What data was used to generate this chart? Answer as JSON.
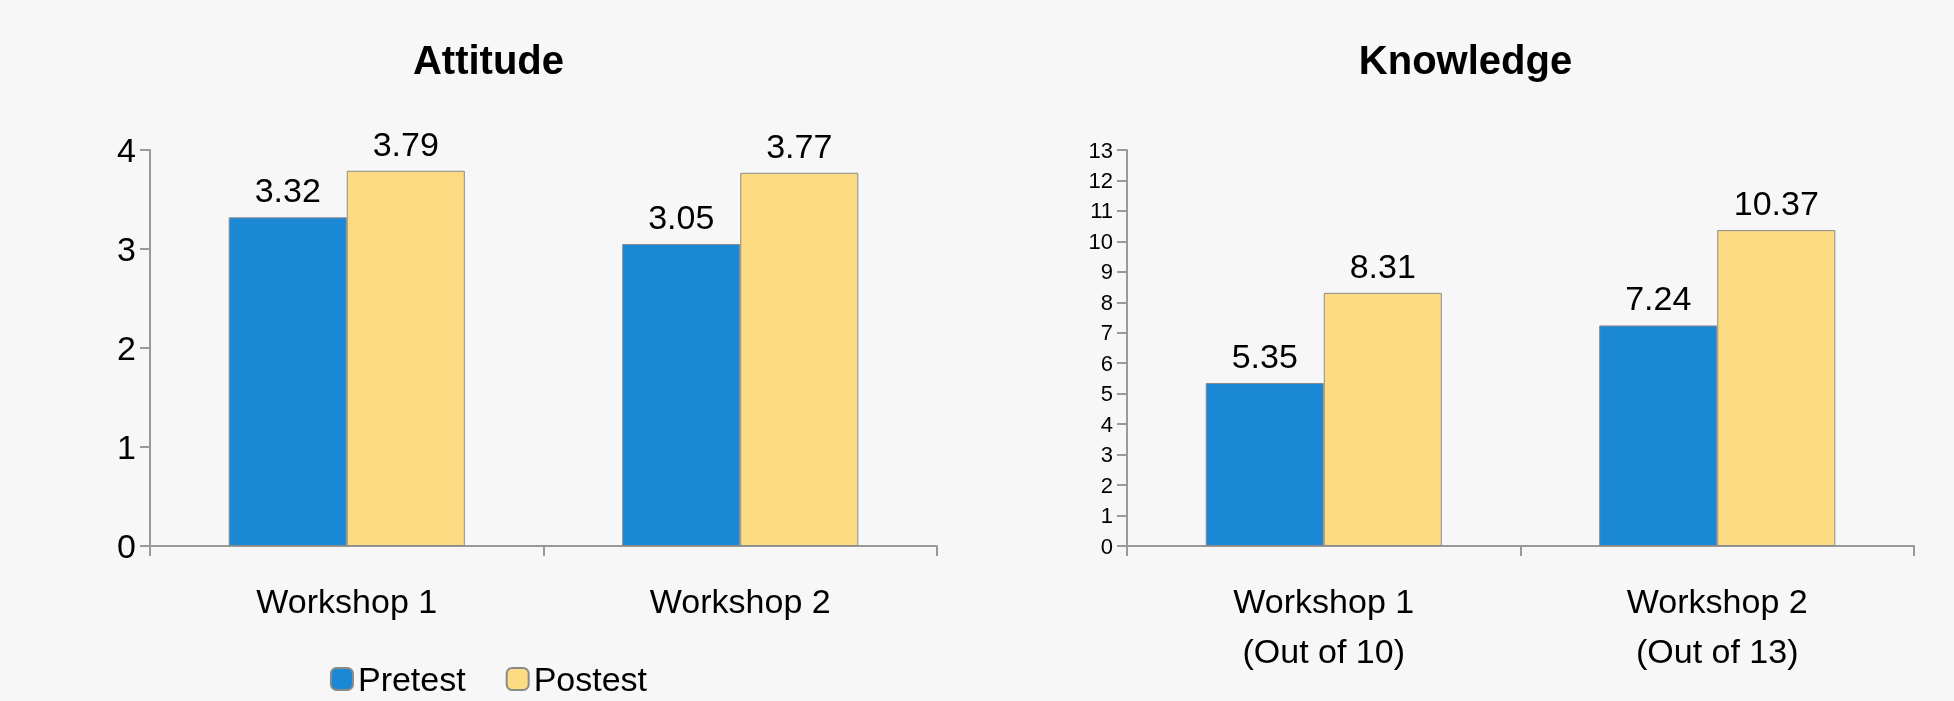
{
  "chart_data": [
    {
      "type": "bar",
      "title": "Attitude",
      "categories": [
        "Workshop 1",
        "Workshop 2"
      ],
      "series": [
        {
          "name": "Pretest",
          "color": "#1b88d6",
          "values": [
            3.32,
            3.05
          ]
        },
        {
          "name": "Postest",
          "color": "#fddb82",
          "values": [
            3.79,
            3.77
          ]
        }
      ],
      "ylim": [
        0,
        4
      ],
      "yticks": [
        0,
        1,
        2,
        3,
        4
      ],
      "grid": false,
      "legend": "bottom",
      "data_labels": true
    },
    {
      "type": "bar",
      "title": "Knowledge",
      "categories": [
        "Workshop 1\n(Out of 10)",
        "Workshop 2\n(Out of 13)"
      ],
      "series": [
        {
          "color": "#1b88d6",
          "values": [
            5.35,
            7.24
          ]
        },
        {
          "color": "#fddb82",
          "values": [
            8.31,
            10.37
          ]
        }
      ],
      "ylim": [
        0,
        13
      ],
      "yticks": [
        0,
        1,
        2,
        3,
        4,
        5,
        6,
        7,
        8,
        9,
        10,
        11,
        12,
        13
      ],
      "grid": false,
      "legend": false,
      "data_labels": true
    }
  ]
}
